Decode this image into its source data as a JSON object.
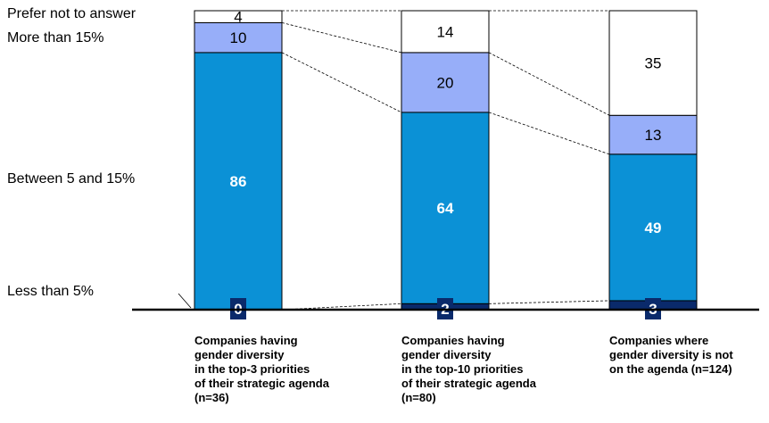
{
  "chart_data": {
    "type": "bar",
    "stacked": true,
    "normalized_percent": true,
    "categories": [
      [
        "Companies having",
        "gender diversity",
        "in the top-3 priorities",
        "of their strategic agenda",
        "(n=36)"
      ],
      [
        "Companies having",
        "gender diversity",
        "in the top-10 priorities",
        "of their strategic agenda",
        "(n=80)"
      ],
      [
        "Companies where",
        "gender diversity is not",
        "on the agenda (n=124)"
      ]
    ],
    "series": [
      {
        "name": "Prefer not to answer",
        "values": [
          0,
          2,
          3
        ],
        "color": "#0a2a6b",
        "label_color": "#ffffff",
        "label_bold": true
      },
      {
        "name": "More than 15%",
        "values": [
          86,
          64,
          49
        ],
        "color": "#0b91d6",
        "label_color": "#ffffff",
        "label_bold": true
      },
      {
        "name": "Between 5 and 15%",
        "values": [
          10,
          20,
          13
        ],
        "color": "#97aef9",
        "label_color": "#000000",
        "label_bold": false
      },
      {
        "name": "Less than 5%",
        "values": [
          4,
          14,
          35
        ],
        "color": "#ffffff",
        "label_color": "#000000",
        "label_bold": false
      }
    ],
    "ylim": [
      0,
      100
    ],
    "legend": "left, inline",
    "grid": false,
    "connector_lines": "dashed"
  }
}
